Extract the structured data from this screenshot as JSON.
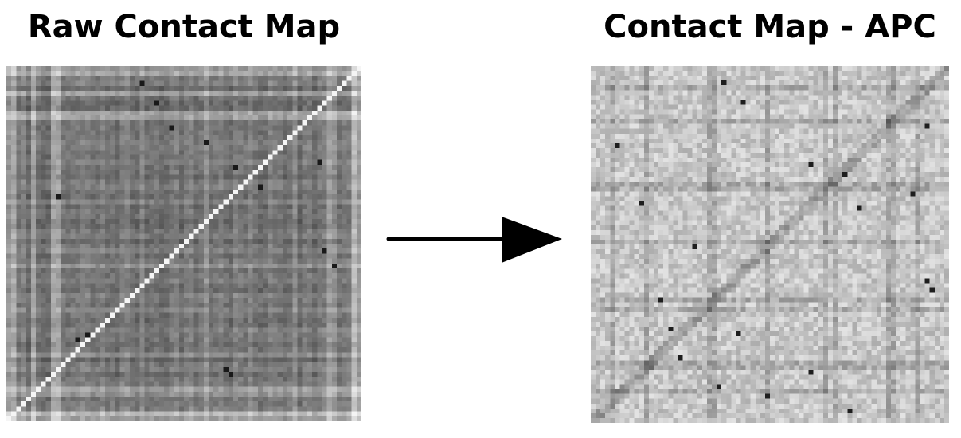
{
  "panels": {
    "left": {
      "title": "Raw Contact Map"
    },
    "right": {
      "title": "Contact Map - APC"
    }
  },
  "colors": {
    "background": "#ffffff",
    "text": "#000000",
    "arrow": "#000000"
  },
  "icons": {
    "transition": "right-arrow-icon"
  }
}
